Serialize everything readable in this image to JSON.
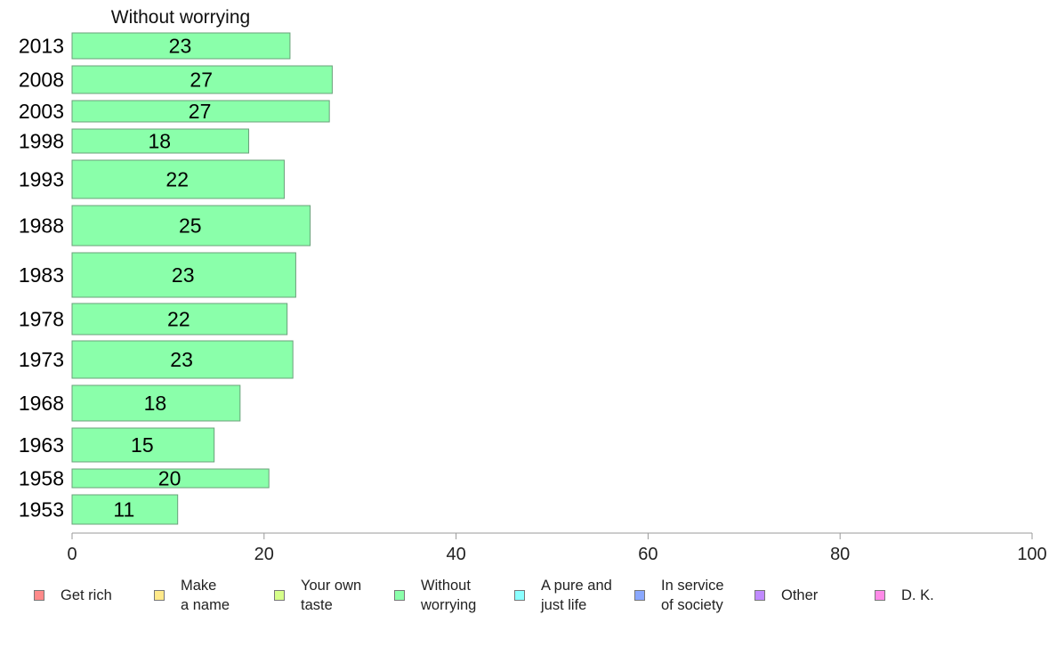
{
  "chart_data": {
    "type": "bar",
    "orientation": "horizontal",
    "title": "Without worrying",
    "categories": [
      "2013",
      "2008",
      "2003",
      "1998",
      "1993",
      "1988",
      "1983",
      "1978",
      "1973",
      "1968",
      "1963",
      "1958",
      "1953"
    ],
    "series": [
      {
        "name": "Without worrying",
        "values": [
          23,
          27,
          27,
          18,
          22,
          25,
          23,
          22,
          23,
          18,
          15,
          20,
          11
        ],
        "color": "#8affaa"
      }
    ],
    "bar_data_values": [
      22.7,
      27.1,
      26.8,
      18.4,
      22.1,
      24.8,
      23.3,
      22.4,
      23.0,
      17.5,
      14.8,
      20.5,
      11.0
    ],
    "xlim": [
      0,
      100
    ],
    "xticks": [
      0,
      20,
      40,
      60,
      80,
      100
    ],
    "xlabel": "",
    "ylabel": "",
    "grid": false,
    "legend_position": "bottom",
    "legend": [
      {
        "label": "Get rich",
        "color": "#ff8a8a"
      },
      {
        "label": "Make\na name",
        "color": "#ffe98a"
      },
      {
        "label": "Your own\ntaste",
        "color": "#d6ff8a"
      },
      {
        "label": "Without\nworrying",
        "color": "#8affaa"
      },
      {
        "label": "A pure and\njust life",
        "color": "#8affff"
      },
      {
        "label": "In service\nof society",
        "color": "#8aa8ff"
      },
      {
        "label": "Other",
        "color": "#c08aff"
      },
      {
        "label": "D. K.",
        "color": "#ff8ae8"
      }
    ]
  }
}
